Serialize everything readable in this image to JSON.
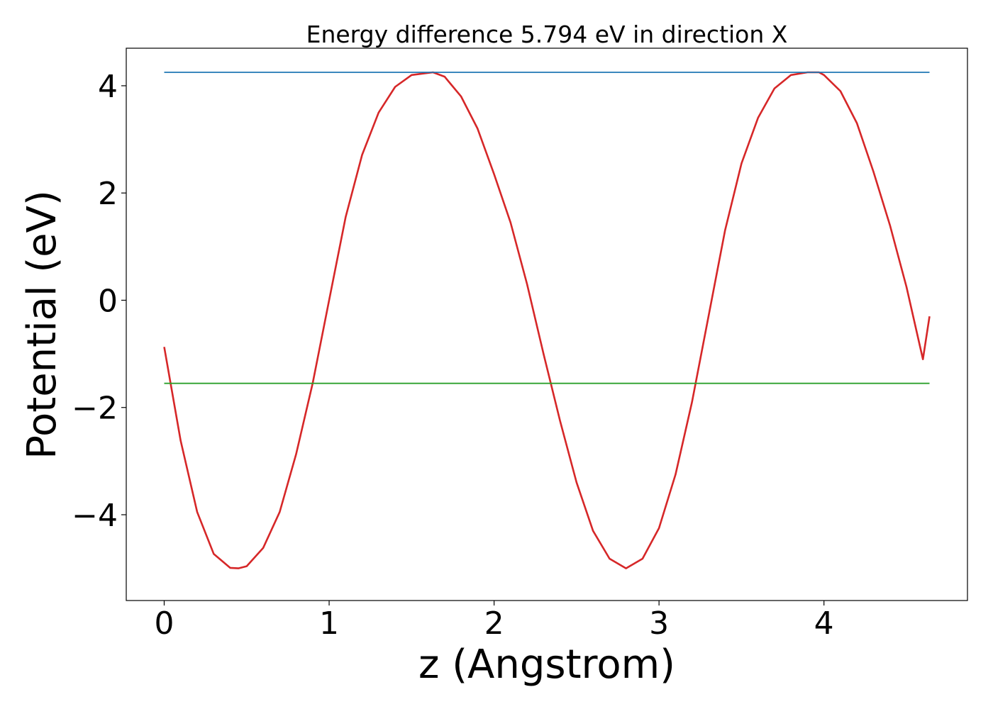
{
  "chart_data": {
    "type": "line",
    "title": "Energy difference 5.794 eV in direction X",
    "xlabel": "z (Angstrom)",
    "ylabel": "Potential (eV)",
    "xlim": [
      -0.23,
      4.87
    ],
    "ylim": [
      -5.6,
      4.7
    ],
    "xticks": [
      0,
      1,
      2,
      3,
      4
    ],
    "yticks": [
      -4,
      -2,
      0,
      2,
      4
    ],
    "xtick_labels": [
      "0",
      "1",
      "2",
      "3",
      "4"
    ],
    "ytick_labels": [
      "−4",
      "−2",
      "0",
      "2",
      "4"
    ],
    "grid": false,
    "series": [
      {
        "color": "#d62728",
        "x": [
          0.0,
          0.1,
          0.2,
          0.3,
          0.4,
          0.45,
          0.5,
          0.6,
          0.7,
          0.8,
          0.9,
          1.0,
          1.1,
          1.2,
          1.3,
          1.4,
          1.5,
          1.6,
          1.63,
          1.7,
          1.8,
          1.9,
          2.0,
          2.1,
          2.2,
          2.3,
          2.4,
          2.5,
          2.6,
          2.7,
          2.8,
          2.9,
          3.0,
          3.1,
          3.2,
          3.3,
          3.4,
          3.5,
          3.6,
          3.7,
          3.8,
          3.9,
          3.97,
          4.0,
          4.1,
          4.2,
          4.3,
          4.4,
          4.5,
          4.6,
          4.64
        ],
        "y": [
          -0.87,
          -2.62,
          -3.95,
          -4.73,
          -4.99,
          -5.0,
          -4.96,
          -4.62,
          -3.95,
          -2.87,
          -1.55,
          0.0,
          1.55,
          2.71,
          3.5,
          3.98,
          4.2,
          4.24,
          4.25,
          4.17,
          3.8,
          3.2,
          2.35,
          1.45,
          0.3,
          -1.0,
          -2.25,
          -3.4,
          -4.3,
          -4.82,
          -5.0,
          -4.82,
          -4.25,
          -3.25,
          -1.9,
          -0.3,
          1.3,
          2.55,
          3.4,
          3.95,
          4.2,
          4.25,
          4.25,
          4.2,
          3.9,
          3.3,
          2.4,
          1.4,
          0.25,
          -1.1,
          -0.3
        ]
      },
      {
        "color": "#1f77b4",
        "x": [
          0.0,
          4.64
        ],
        "y": [
          4.25,
          4.25
        ]
      },
      {
        "color": "#2ca02c",
        "x": [
          0.0,
          4.64
        ],
        "y": [
          -1.55,
          -1.55
        ]
      }
    ]
  }
}
